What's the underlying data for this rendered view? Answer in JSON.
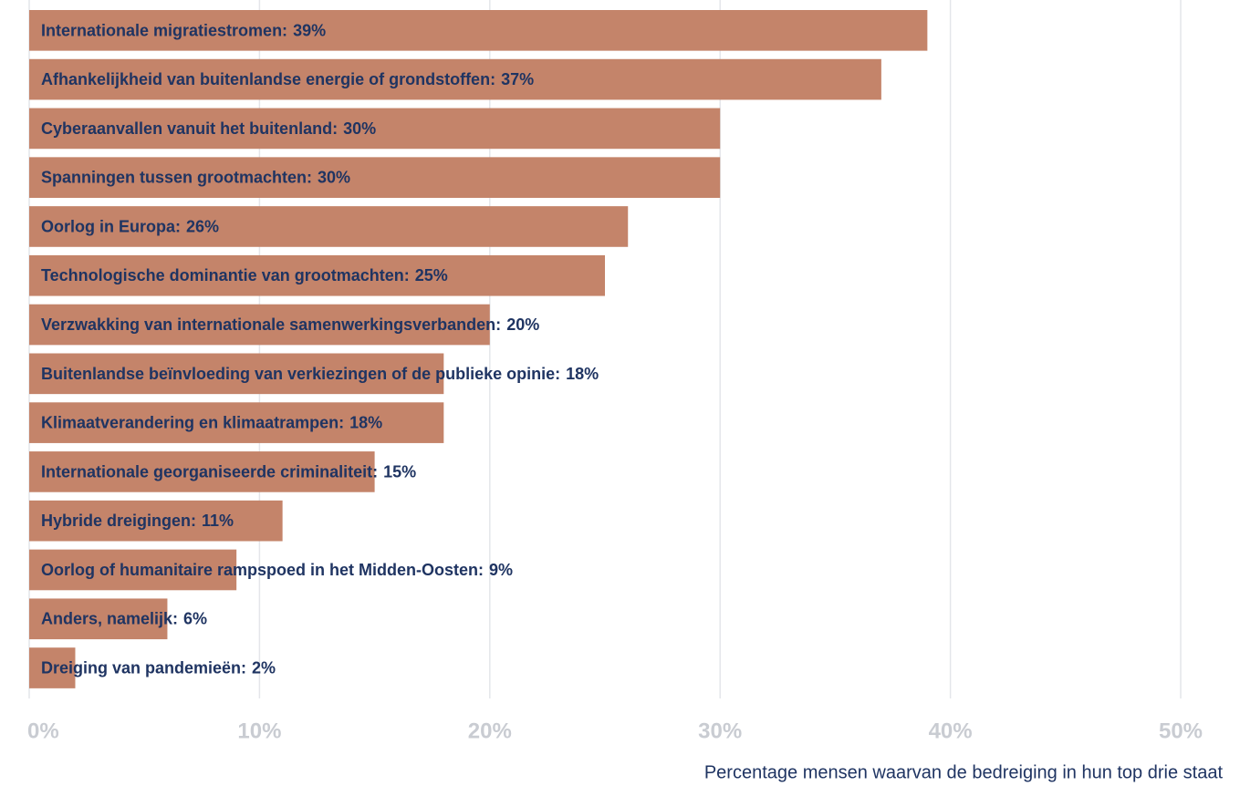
{
  "chart_data": {
    "type": "barh",
    "categories": [
      "Internationale migratiestromen:",
      "Afhankelijkheid van buitenlandse energie of grondstoffen:",
      "Cyberaanvallen vanuit het buitenland:",
      "Spanningen tussen grootmachten:",
      "Oorlog in Europa:",
      "Technologische dominantie van grootmachten:",
      "Verzwakking van internationale samenwerkingsverbanden:",
      "Buitenlandse beïnvloeding van verkiezingen of de publieke opinie:",
      "Klimaatverandering en klimaatrampen:",
      "Internationale georganiseerde criminaliteit:",
      "Hybride dreigingen:",
      "Oorlog of humanitaire rampspoed in het Midden-Oosten:",
      "Anders, namelijk:",
      "Dreiging van pandemieën:"
    ],
    "values": [
      39,
      37,
      30,
      30,
      26,
      25,
      20,
      18,
      18,
      15,
      11,
      9,
      6,
      2
    ],
    "value_labels": [
      "39%",
      "37%",
      "30%",
      "30%",
      "26%",
      "25%",
      "20%",
      "18%",
      "18%",
      "15%",
      "11%",
      "9%",
      "6%",
      "2%"
    ],
    "color": "#c4846a",
    "xlim": [
      0,
      50
    ],
    "xticks": [
      {
        "value": 0,
        "label": "0%"
      },
      {
        "value": 10,
        "label": "10%"
      },
      {
        "value": 20,
        "label": "20%"
      },
      {
        "value": 30,
        "label": "30%"
      },
      {
        "value": 40,
        "label": "40%"
      },
      {
        "value": 50,
        "label": "50%"
      }
    ],
    "grid": true,
    "x_label": "Percentage mensen waarvan de bedreiging in hun top drie staat"
  }
}
